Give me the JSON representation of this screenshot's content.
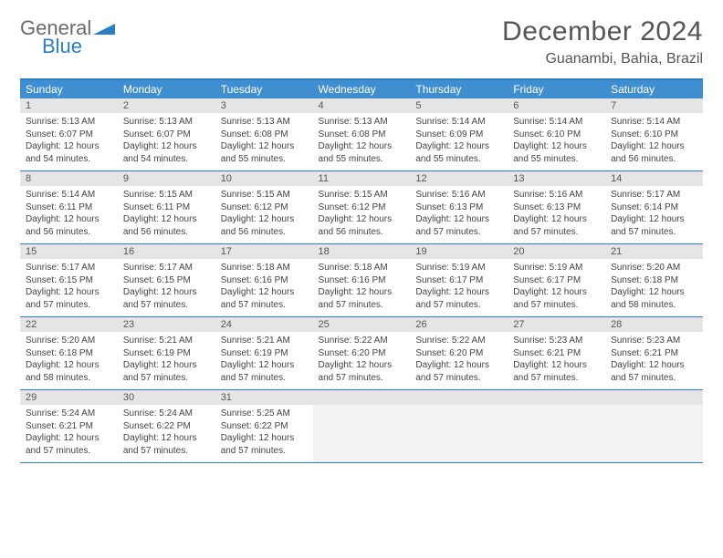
{
  "logo": {
    "text1": "General",
    "text2": "Blue"
  },
  "title": "December 2024",
  "location": "Guanambi, Bahia, Brazil",
  "colors": {
    "header_bg": "#3f8ecf",
    "accent": "#2a7fc4",
    "daynum_bg": "#e5e5e5",
    "text": "#444444",
    "title_text": "#555555"
  },
  "weekdays": [
    "Sunday",
    "Monday",
    "Tuesday",
    "Wednesday",
    "Thursday",
    "Friday",
    "Saturday"
  ],
  "weeks": [
    [
      {
        "d": "1",
        "sr": "5:13 AM",
        "ss": "6:07 PM",
        "dl": "12 hours and 54 minutes."
      },
      {
        "d": "2",
        "sr": "5:13 AM",
        "ss": "6:07 PM",
        "dl": "12 hours and 54 minutes."
      },
      {
        "d": "3",
        "sr": "5:13 AM",
        "ss": "6:08 PM",
        "dl": "12 hours and 55 minutes."
      },
      {
        "d": "4",
        "sr": "5:13 AM",
        "ss": "6:08 PM",
        "dl": "12 hours and 55 minutes."
      },
      {
        "d": "5",
        "sr": "5:14 AM",
        "ss": "6:09 PM",
        "dl": "12 hours and 55 minutes."
      },
      {
        "d": "6",
        "sr": "5:14 AM",
        "ss": "6:10 PM",
        "dl": "12 hours and 55 minutes."
      },
      {
        "d": "7",
        "sr": "5:14 AM",
        "ss": "6:10 PM",
        "dl": "12 hours and 56 minutes."
      }
    ],
    [
      {
        "d": "8",
        "sr": "5:14 AM",
        "ss": "6:11 PM",
        "dl": "12 hours and 56 minutes."
      },
      {
        "d": "9",
        "sr": "5:15 AM",
        "ss": "6:11 PM",
        "dl": "12 hours and 56 minutes."
      },
      {
        "d": "10",
        "sr": "5:15 AM",
        "ss": "6:12 PM",
        "dl": "12 hours and 56 minutes."
      },
      {
        "d": "11",
        "sr": "5:15 AM",
        "ss": "6:12 PM",
        "dl": "12 hours and 56 minutes."
      },
      {
        "d": "12",
        "sr": "5:16 AM",
        "ss": "6:13 PM",
        "dl": "12 hours and 57 minutes."
      },
      {
        "d": "13",
        "sr": "5:16 AM",
        "ss": "6:13 PM",
        "dl": "12 hours and 57 minutes."
      },
      {
        "d": "14",
        "sr": "5:17 AM",
        "ss": "6:14 PM",
        "dl": "12 hours and 57 minutes."
      }
    ],
    [
      {
        "d": "15",
        "sr": "5:17 AM",
        "ss": "6:15 PM",
        "dl": "12 hours and 57 minutes."
      },
      {
        "d": "16",
        "sr": "5:17 AM",
        "ss": "6:15 PM",
        "dl": "12 hours and 57 minutes."
      },
      {
        "d": "17",
        "sr": "5:18 AM",
        "ss": "6:16 PM",
        "dl": "12 hours and 57 minutes."
      },
      {
        "d": "18",
        "sr": "5:18 AM",
        "ss": "6:16 PM",
        "dl": "12 hours and 57 minutes."
      },
      {
        "d": "19",
        "sr": "5:19 AM",
        "ss": "6:17 PM",
        "dl": "12 hours and 57 minutes."
      },
      {
        "d": "20",
        "sr": "5:19 AM",
        "ss": "6:17 PM",
        "dl": "12 hours and 57 minutes."
      },
      {
        "d": "21",
        "sr": "5:20 AM",
        "ss": "6:18 PM",
        "dl": "12 hours and 58 minutes."
      }
    ],
    [
      {
        "d": "22",
        "sr": "5:20 AM",
        "ss": "6:18 PM",
        "dl": "12 hours and 58 minutes."
      },
      {
        "d": "23",
        "sr": "5:21 AM",
        "ss": "6:19 PM",
        "dl": "12 hours and 57 minutes."
      },
      {
        "d": "24",
        "sr": "5:21 AM",
        "ss": "6:19 PM",
        "dl": "12 hours and 57 minutes."
      },
      {
        "d": "25",
        "sr": "5:22 AM",
        "ss": "6:20 PM",
        "dl": "12 hours and 57 minutes."
      },
      {
        "d": "26",
        "sr": "5:22 AM",
        "ss": "6:20 PM",
        "dl": "12 hours and 57 minutes."
      },
      {
        "d": "27",
        "sr": "5:23 AM",
        "ss": "6:21 PM",
        "dl": "12 hours and 57 minutes."
      },
      {
        "d": "28",
        "sr": "5:23 AM",
        "ss": "6:21 PM",
        "dl": "12 hours and 57 minutes."
      }
    ],
    [
      {
        "d": "29",
        "sr": "5:24 AM",
        "ss": "6:21 PM",
        "dl": "12 hours and 57 minutes."
      },
      {
        "d": "30",
        "sr": "5:24 AM",
        "ss": "6:22 PM",
        "dl": "12 hours and 57 minutes."
      },
      {
        "d": "31",
        "sr": "5:25 AM",
        "ss": "6:22 PM",
        "dl": "12 hours and 57 minutes."
      },
      null,
      null,
      null,
      null
    ]
  ],
  "labels": {
    "sunrise": "Sunrise:",
    "sunset": "Sunset:",
    "daylight": "Daylight:"
  }
}
